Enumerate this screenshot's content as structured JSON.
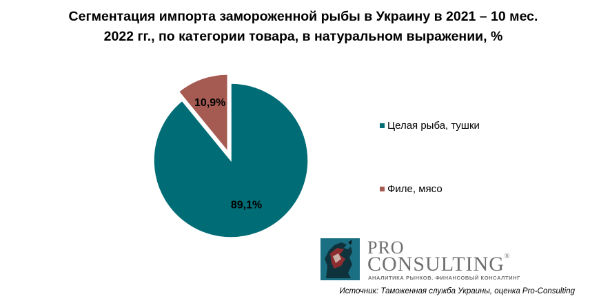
{
  "title": {
    "line1": "Сегментация импорта замороженной рыбы в Украину в 2021 – 10 мес.",
    "line2": "2022 гг., по категории товара, в натуральном выражении, %"
  },
  "chart_data": {
    "type": "pie",
    "slices": [
      {
        "label": "Целая рыба, тушки",
        "value": 89.1,
        "value_label": "89,1%",
        "color": "#006c75",
        "exploded": false
      },
      {
        "label": "Филе,  мясо",
        "value": 10.9,
        "value_label": "10,9%",
        "color": "#a65b52",
        "exploded": true
      }
    ],
    "legend_position": "right"
  },
  "logo": {
    "line1": "PRO",
    "line2": "CONSULTING",
    "registered": "®",
    "tagline": "АНАЛИТИКА РЫНКОВ. ФИНАНСОВЫЙ КОНСАЛТИНГ"
  },
  "source": "Источник: Таможенная служба Украины, оценка Pro-Consulting"
}
